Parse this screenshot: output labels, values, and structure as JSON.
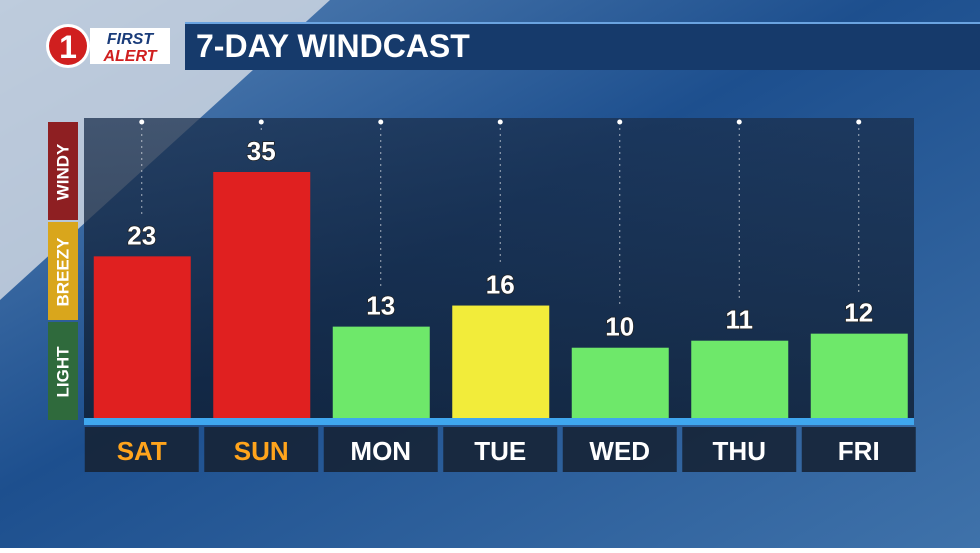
{
  "logo": {
    "number": "1",
    "top": "FIRST",
    "bottom": "ALERT"
  },
  "chart_data": {
    "type": "bar",
    "title": "7-DAY WINDCAST",
    "categories": [
      "SAT",
      "SUN",
      "MON",
      "TUE",
      "WED",
      "THU",
      "FRI"
    ],
    "values": [
      23,
      35,
      13,
      16,
      10,
      11,
      12
    ],
    "colors": [
      "#e02020",
      "#e02020",
      "#6ee86a",
      "#f2ec3a",
      "#6ee86a",
      "#6ee86a",
      "#6ee86a"
    ],
    "label_colors": [
      "#ffa41c",
      "#ffa41c",
      "#ffffff",
      "#ffffff",
      "#ffffff",
      "#ffffff",
      "#ffffff"
    ],
    "zones": [
      {
        "label": "WINDY",
        "color": "#8e1f22"
      },
      {
        "label": "BREEZY",
        "color": "#d9a61c"
      },
      {
        "label": "LIGHT",
        "color": "#2f6a3c"
      }
    ]
  }
}
